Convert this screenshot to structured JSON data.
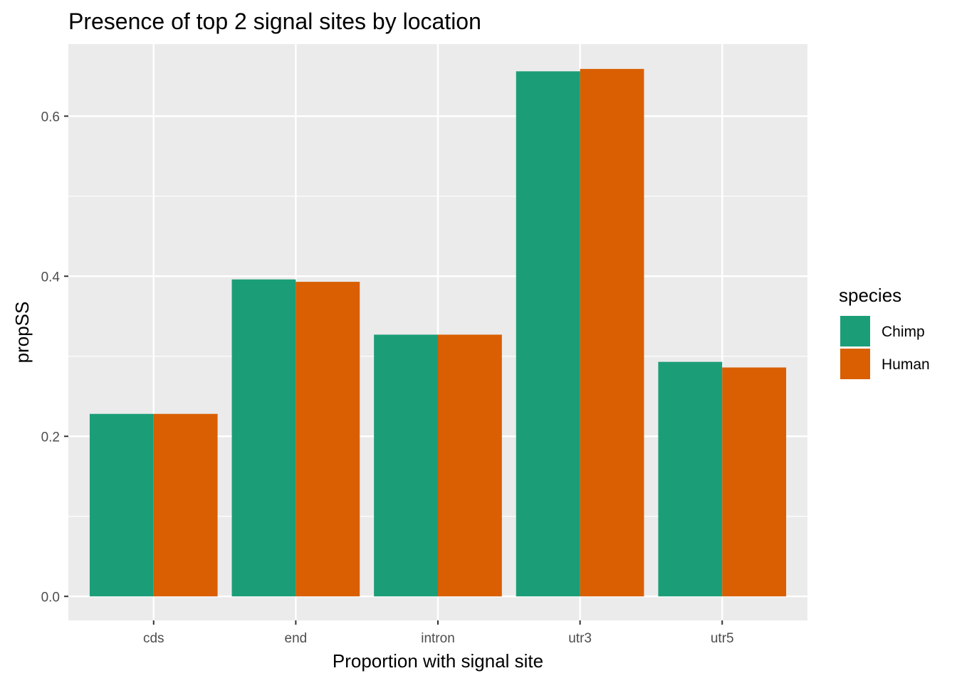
{
  "chart_data": {
    "type": "bar",
    "title": "Presence of top 2 signal sites by location",
    "xlabel": "Proportion with signal site",
    "ylabel": "propSS",
    "categories": [
      "cds",
      "end",
      "intron",
      "utr3",
      "utr5"
    ],
    "series": [
      {
        "name": "Chimp",
        "color": "#1b9e77",
        "values": [
          0.228,
          0.396,
          0.327,
          0.656,
          0.293
        ]
      },
      {
        "name": "Human",
        "color": "#d95f02",
        "values": [
          0.228,
          0.393,
          0.327,
          0.659,
          0.286
        ]
      }
    ],
    "ylim": [
      -0.03,
      0.69
    ],
    "yticks": [
      0.0,
      0.2,
      0.4,
      0.6
    ],
    "ytick_labels": [
      "0.0",
      "0.2",
      "0.4",
      "0.6"
    ],
    "grid": true,
    "panel_background": "#ebebeb",
    "legend": {
      "title": "species",
      "position": "right"
    }
  }
}
